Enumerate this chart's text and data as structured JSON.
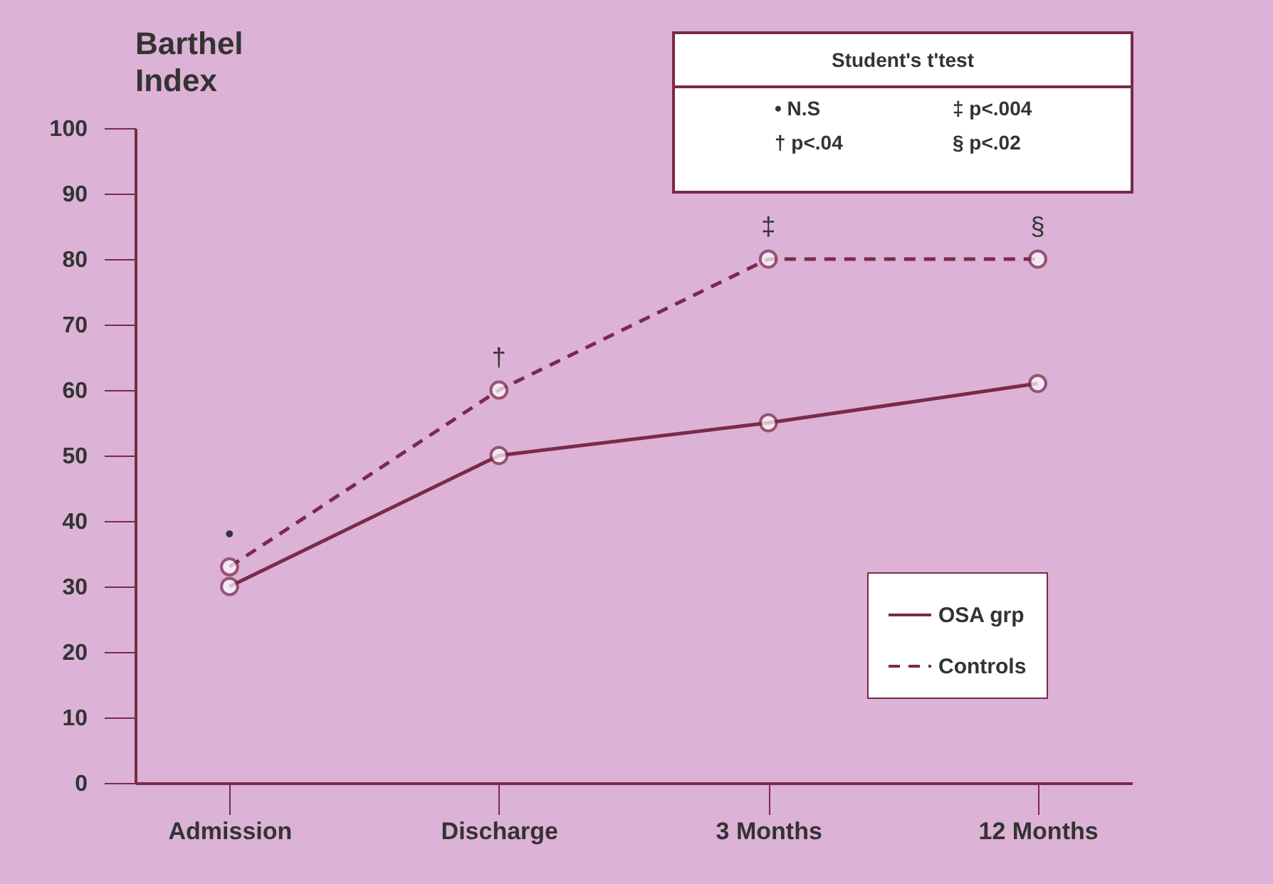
{
  "chart_data": {
    "type": "line",
    "ylabel": "Barthel Index",
    "categories": [
      "Admission",
      "Discharge",
      "3 Months",
      "12 Months"
    ],
    "series": [
      {
        "name": "OSA grp",
        "color": "#7a2a4a",
        "values": [
          30,
          50,
          55,
          61
        ],
        "line_style": "solid"
      },
      {
        "name": "Controls",
        "color": "#7a2a4a",
        "values": [
          33,
          60,
          80,
          80
        ],
        "line_style": "dashed"
      }
    ],
    "ylim": [
      0,
      100
    ],
    "yticks": [
      0,
      10,
      20,
      30,
      40,
      50,
      60,
      70,
      80,
      90,
      100
    ],
    "marker": "circle",
    "legend": "bottom right",
    "annotations": [
      "Student's t'test",
      "• N.S",
      "‡ p<.004",
      "† p<.04",
      "§ p<.02",
      {
        "text": "•",
        "x": "Admission",
        "y": 33
      },
      {
        "text": "†",
        "x": "Discharge",
        "y": 60
      },
      {
        "text": "‡",
        "x": "3 Months",
        "y": 80
      },
      {
        "text": "§",
        "x": "12 Months",
        "y": 80
      }
    ]
  }
}
